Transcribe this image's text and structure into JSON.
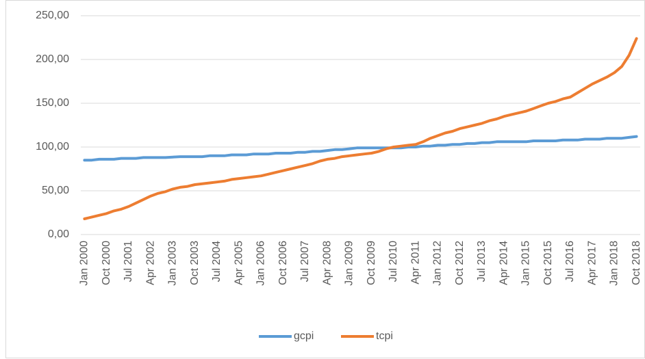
{
  "chart_data": {
    "type": "line",
    "categories": [
      "Jan 2000",
      null,
      null,
      "Oct 2000",
      null,
      null,
      "Jul 2001",
      null,
      null,
      "Apr 2002",
      null,
      null,
      "Jan 2003",
      null,
      null,
      "Oct 2003",
      null,
      null,
      "Jul 2004",
      null,
      null,
      "Apr 2005",
      null,
      null,
      "Jan 2006",
      null,
      null,
      "Oct 2006",
      null,
      null,
      "Jul 2007",
      null,
      null,
      "Apr 2008",
      null,
      null,
      "Jan 2009",
      null,
      null,
      "Oct 2009",
      null,
      null,
      "Jul 2010",
      null,
      null,
      "Apr 2011",
      null,
      null,
      "Jan 2012",
      null,
      null,
      "Oct 2012",
      null,
      null,
      "Jul 2013",
      null,
      null,
      "Apr 2014",
      null,
      null,
      "Jan 2015",
      null,
      null,
      "Oct 2015",
      null,
      null,
      "Jul 2016",
      null,
      null,
      "Apr 2017",
      null,
      null,
      "Jan 2018",
      null,
      null,
      "Oct 2018"
    ],
    "series": [
      {
        "name": "gcpi",
        "color": "#5b9bd5",
        "values": [
          85,
          85,
          86,
          86,
          86,
          87,
          87,
          87,
          88,
          88,
          88,
          88,
          88.5,
          89,
          89,
          89,
          89,
          90,
          90,
          90,
          91,
          91,
          91,
          92,
          92,
          92,
          93,
          93,
          93,
          94,
          94,
          95,
          95,
          96,
          97,
          97,
          98,
          99,
          99,
          99,
          99,
          99,
          99,
          99,
          100,
          100,
          101,
          101,
          102,
          102,
          103,
          103,
          104,
          104,
          105,
          105,
          106,
          106,
          106,
          106,
          106,
          107,
          107,
          107,
          107,
          108,
          108,
          108,
          109,
          109,
          109,
          110,
          110,
          110,
          111,
          112
        ]
      },
      {
        "name": "tcpi",
        "color": "#ed7d31",
        "values": [
          18,
          20,
          22,
          24,
          27,
          29,
          32,
          36,
          40,
          44,
          47,
          49,
          52,
          54,
          55,
          57,
          58,
          59,
          60,
          61,
          63,
          64,
          65,
          66,
          67,
          69,
          71,
          73,
          75,
          77,
          79,
          81,
          84,
          86,
          87,
          89,
          90,
          91,
          92,
          93,
          95,
          98,
          100,
          101,
          102,
          103,
          106,
          110,
          113,
          116,
          118,
          121,
          123,
          125,
          127,
          130,
          132,
          135,
          137,
          139,
          141,
          144,
          147,
          150,
          152,
          155,
          157,
          162,
          167,
          172,
          176,
          180,
          185,
          192,
          205,
          224
        ]
      }
    ],
    "ylim": [
      0,
      250
    ],
    "yticks": [
      {
        "value": 0,
        "label": "0,00"
      },
      {
        "value": 50,
        "label": "50,00"
      },
      {
        "value": 100,
        "label": "100,00"
      },
      {
        "value": 150,
        "label": "150,00"
      },
      {
        "value": 200,
        "label": "200,00"
      },
      {
        "value": 250,
        "label": "250,00"
      }
    ],
    "grid": true,
    "legend": "bottom"
  }
}
